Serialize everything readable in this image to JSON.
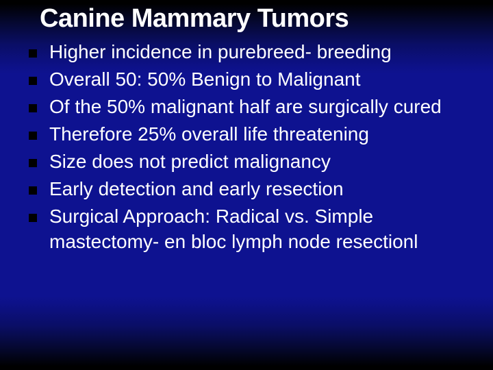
{
  "slide": {
    "title": "Canine Mammary Tumors",
    "title_color": "#ffffff",
    "title_fontsize": 38,
    "title_fontweight": 700,
    "bullet_color": "#000000",
    "text_color": "#ffffff",
    "text_fontsize": 28,
    "background_gradient": [
      "#000000",
      "#0e1290",
      "#000000"
    ],
    "bullets": [
      {
        "text": "Higher incidence in purebreed- breeding"
      },
      {
        "text": "Overall 50: 50% Benign to Malignant"
      },
      {
        "text": "Of the 50% malignant half are surgically cured"
      },
      {
        "text": "Therefore 25% overall life threatening"
      },
      {
        "text": "Size does not predict malignancy"
      },
      {
        "text": "Early detection and early resection"
      },
      {
        "text": "Surgical Approach: Radical vs. Simple mastectomy- en bloc lymph node resectionl"
      }
    ]
  }
}
